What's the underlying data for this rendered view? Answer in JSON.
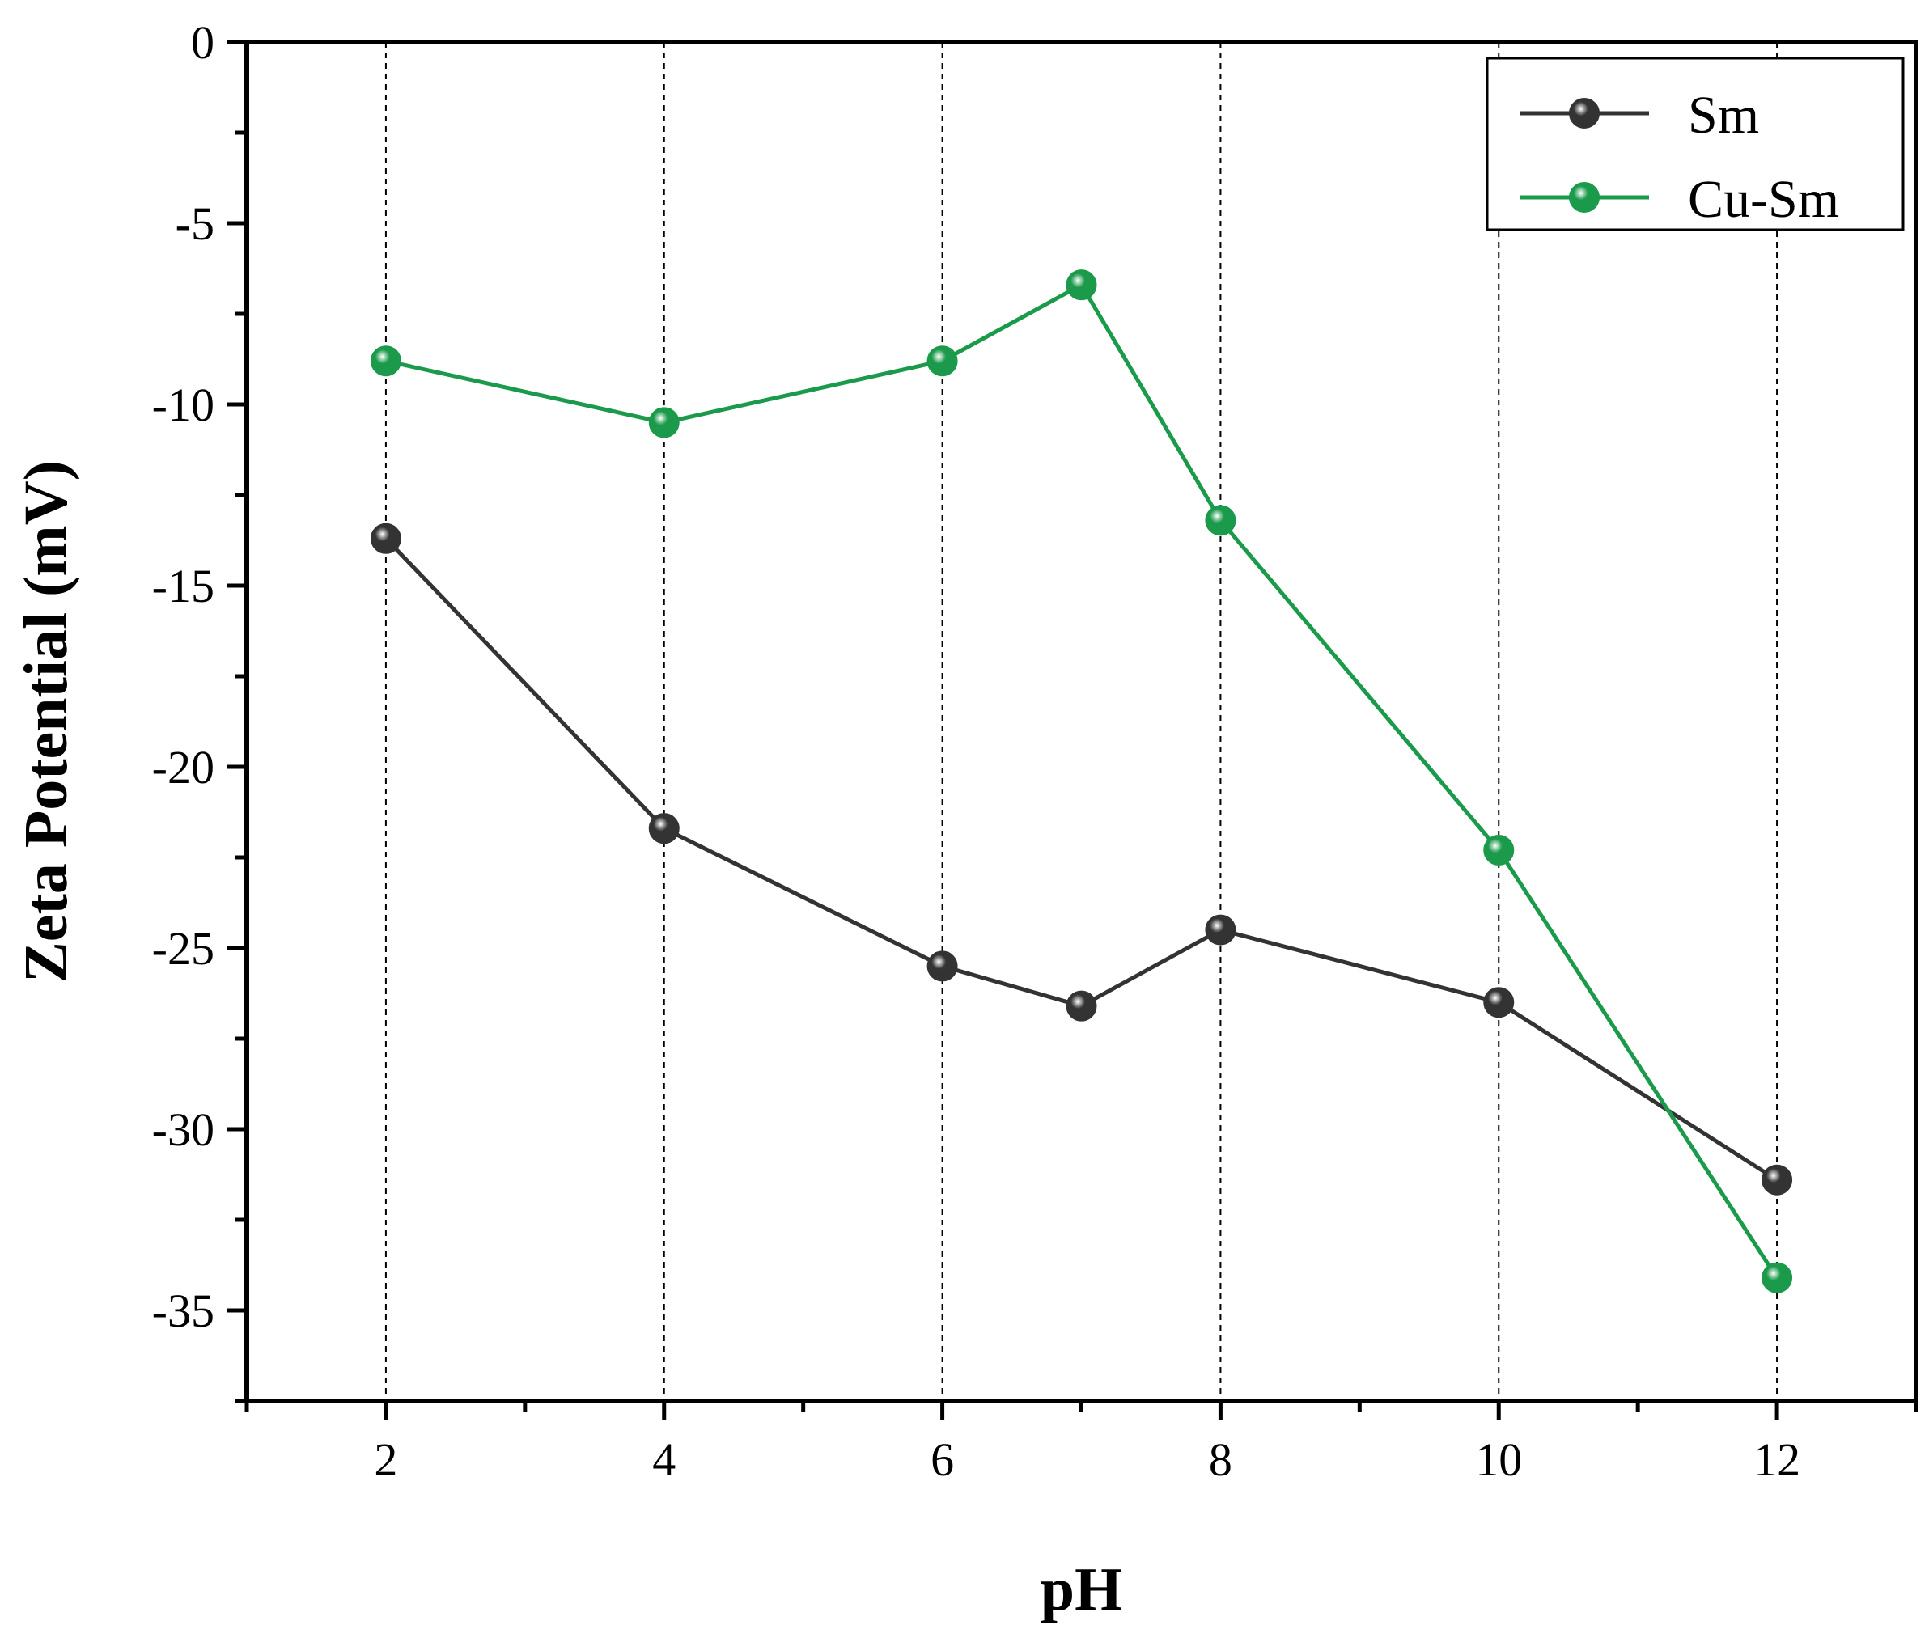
{
  "chart_data": {
    "type": "line",
    "title": "",
    "xlabel": "pH",
    "ylabel": "Zeta Potential (mV)",
    "xlim": [
      1,
      13
    ],
    "ylim": [
      -37.5,
      0
    ],
    "x_ticks": [
      2,
      4,
      6,
      8,
      10,
      12
    ],
    "x_tick_labels": [
      "2",
      "4",
      "6",
      "8",
      "10",
      "12"
    ],
    "y_ticks": [
      0,
      -5,
      -10,
      -15,
      -20,
      -25,
      -30,
      -35
    ],
    "y_tick_labels": [
      "0",
      "-5",
      "-10",
      "-15",
      "-20",
      "-25",
      "-30",
      "-35"
    ],
    "grid": "vertical dashed",
    "legend_position": "top-right",
    "series": [
      {
        "name": "Sm",
        "color": "#333333",
        "x": [
          2,
          4,
          6,
          7,
          8,
          10,
          12
        ],
        "values": [
          -13.7,
          -21.7,
          -25.5,
          -26.6,
          -24.5,
          -26.5,
          -31.4
        ]
      },
      {
        "name": "Cu-Sm",
        "color": "#1a9a4a",
        "x": [
          2,
          4,
          6,
          7,
          8,
          10,
          12
        ],
        "values": [
          -8.8,
          -10.5,
          -8.8,
          -6.7,
          -13.2,
          -22.3,
          -34.1
        ]
      }
    ]
  }
}
